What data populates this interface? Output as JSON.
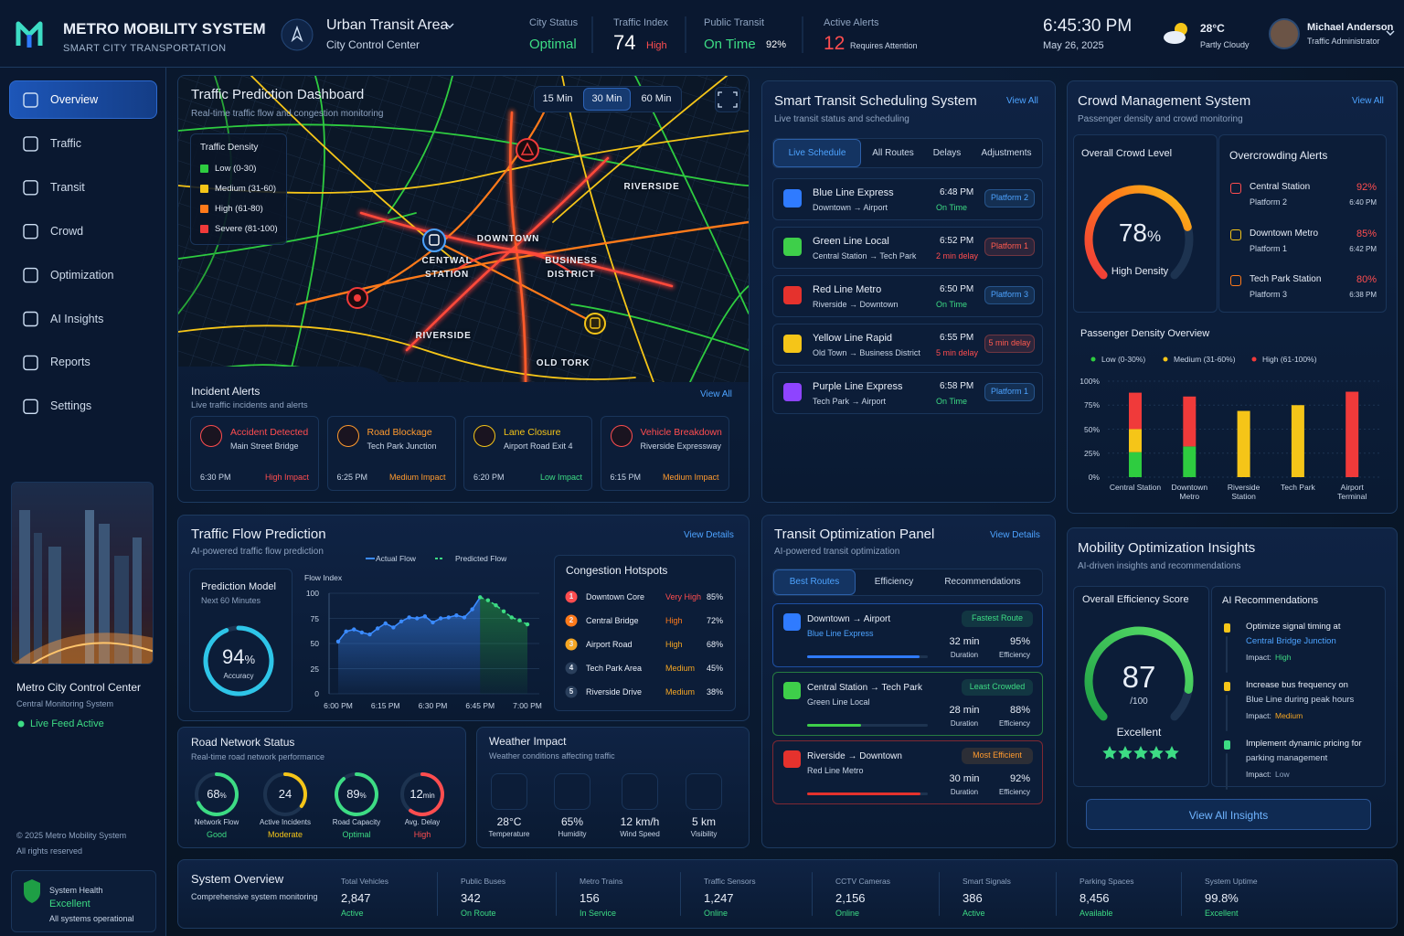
{
  "header": {
    "title": "METRO MOBILITY SYSTEM",
    "subtitle": "SMART CITY TRANSPORTATION",
    "area": "Urban Transit Area",
    "center": "City Control Center",
    "stats": [
      {
        "label": "City Status",
        "value": "Optimal",
        "color": "#3ddc84"
      },
      {
        "label": "Traffic Index",
        "value": 74,
        "color": "#ffffff",
        "note": "High",
        "note_color": "#ff4d4f"
      },
      {
        "label": "Public Transit",
        "value": "On Time",
        "color": "#3ddc84",
        "note": "92%",
        "note_color": "#ffffff"
      },
      {
        "label": "Active Alerts",
        "value": 12,
        "color": "#ff4d4f",
        "note": "Requires Attention",
        "note_color": "#c9d6e8"
      }
    ],
    "time": "6:45:30 PM",
    "date": "May 26, 2025",
    "temperature": "28°C",
    "weather": "Partly Cloudy",
    "user": "Michael Anderson",
    "role": "Traffic Administrator"
  },
  "sidebar": {
    "nav": [
      "Overview",
      "Traffic",
      "Transit",
      "Crowd",
      "Optimization",
      "AI Insights",
      "Reports",
      "Settings"
    ],
    "feed": {
      "title": "Metro City Control Center",
      "subtitle": "Central Monitoring System",
      "status": "Live Feed Active"
    },
    "copyright": "© 2025 Metro Mobility System",
    "rights": "All rights reserved",
    "health": {
      "label": "System Health",
      "status": "Excellent",
      "note": "All systems operational"
    }
  },
  "traffic_map": {
    "title": "Traffic Prediction Dashboard",
    "subtitle": "Real-time traffic flow and congestion monitoring",
    "tabs": [
      "15 Min",
      "30 Min",
      "60 Min"
    ],
    "legend": {
      "title": "Traffic Density",
      "items": [
        {
          "label": "Low (0-30)",
          "color": "#2ecc40"
        },
        {
          "label": "Medium (31-60)",
          "color": "#f5c518"
        },
        {
          "label": "High (61-80)",
          "color": "#ff7a1a"
        },
        {
          "label": "Severe (81-100)",
          "color": "#f03a3a"
        }
      ]
    },
    "places": [
      "RIVERSIDE",
      "DOWNTOWN",
      "CENTWAL STATION",
      "BUSINESS DISTRICT",
      "RIVERSIDE",
      "OLD TORK"
    ],
    "incidents": {
      "title": "Incident Alerts",
      "subtitle": "Live traffic incidents and alerts",
      "view_all": "View All",
      "items": [
        {
          "title": "Accident Detected",
          "location": "Main Street Bridge",
          "time": "6:30 PM",
          "impact": "High Impact",
          "color": "#ff4d4f"
        },
        {
          "title": "Road Blockage",
          "location": "Tech Park Junction",
          "time": "6:25 PM",
          "impact": "Medium Impact",
          "color": "#ff9a2e"
        },
        {
          "title": "Lane Closure",
          "location": "Airport Road Exit 4",
          "time": "6:20 PM",
          "impact": "Low Impact",
          "color": "#f5c518",
          "impact_color": "#3ddc84"
        },
        {
          "title": "Vehicle Breakdown",
          "location": "Riverside Expressway",
          "time": "6:15 PM",
          "impact": "Medium Impact",
          "color": "#ff4d4f",
          "impact_color": "#ff9a2e"
        }
      ]
    }
  },
  "schedule": {
    "title": "Smart Transit Scheduling System",
    "view_all": "View All",
    "subtitle": "Live transit status and scheduling",
    "tabs": [
      "Live Schedule",
      "All Routes",
      "Delays",
      "Adjustments"
    ],
    "rows": [
      {
        "name": "Blue Line Express",
        "route": "Downtown → Airport",
        "time": "6:48 PM",
        "status": "On Time",
        "status_color": "#3ddc84",
        "badge": "Platform 2",
        "badge_color": "#4da3ff",
        "color": "#2f7bff"
      },
      {
        "name": "Green Line Local",
        "route": "Central Station → Tech Park",
        "time": "6:52 PM",
        "status": "2 min delay",
        "status_color": "#ff4d4f",
        "badge": "Platform 1",
        "badge_color": "#ff5a4f",
        "color": "#3ecf4a"
      },
      {
        "name": "Red Line Metro",
        "route": "Riverside → Downtown",
        "time": "6:50 PM",
        "status": "On Time",
        "status_color": "#3ddc84",
        "badge": "Platform 3",
        "badge_color": "#4da3ff",
        "color": "#e5322d"
      },
      {
        "name": "Yellow Line Rapid",
        "route": "Old Town → Business District",
        "time": "6:55 PM",
        "status": "5 min delay",
        "status_color": "#ff4d4f",
        "badge": "5 min delay",
        "badge_color": "#ff5a4f",
        "color": "#f5c518"
      },
      {
        "name": "Purple Line Express",
        "route": "Tech Park → Airport",
        "time": "6:58 PM",
        "status": "On Time",
        "status_color": "#3ddc84",
        "badge": "Platform 1",
        "badge_color": "#4da3ff",
        "color": "#8e44ff"
      }
    ]
  },
  "crowd": {
    "title": "Crowd Management System",
    "view_all": "View All",
    "subtitle": "Passenger density and crowd monitoring",
    "overall": {
      "title": "Overall Crowd Level",
      "value": 78,
      "unit": "%",
      "label": "High Density"
    },
    "alerts": {
      "title": "Overcrowding Alerts",
      "items": [
        {
          "name": "Central Station",
          "platform": "Platform 2",
          "value": "92%",
          "time": "6:40 PM",
          "color": "#ff4d4f"
        },
        {
          "name": "Downtown Metro",
          "platform": "Platform 1",
          "value": "85%",
          "time": "6:42 PM",
          "color": "#f5c518"
        },
        {
          "name": "Tech Park Station",
          "platform": "Platform 3",
          "value": "80%",
          "time": "6:38 PM",
          "color": "#ff7a1a"
        }
      ]
    },
    "density_chart": {
      "type": "bar",
      "stacked": true,
      "title": "Passenger Density Overview",
      "categories": [
        "Central Station",
        "Downtown Metro",
        "Riverside Station",
        "Tech Park",
        "Airport Terminal"
      ],
      "series": [
        {
          "name": "Low (0-30%)",
          "color": "#2ecc40",
          "values": [
            26,
            32,
            0,
            0,
            0
          ]
        },
        {
          "name": "Medium (31-60%)",
          "color": "#f5c518",
          "values": [
            24,
            0,
            69,
            75,
            0
          ]
        },
        {
          "name": "High (61-100%)",
          "color": "#f03a3a",
          "values": [
            38,
            52,
            0,
            0,
            89
          ]
        }
      ],
      "ylim": [
        0,
        100
      ],
      "yticks": [
        {
          "value": 0,
          "label": "0%"
        },
        {
          "value": 25,
          "label": "25%"
        },
        {
          "value": 50,
          "label": "50%"
        },
        {
          "value": 75,
          "label": "75%"
        },
        {
          "value": 100,
          "label": "100%"
        }
      ]
    }
  },
  "flow": {
    "title": "Traffic Flow Prediction",
    "view_details": "View Details",
    "subtitle": "AI-powered traffic flow prediction",
    "model": {
      "title": "Prediction Model",
      "subtitle": "Next 60 Minutes",
      "value": 94,
      "unit": "%",
      "label": "Accuracy"
    },
    "chart": {
      "type": "line",
      "y_label": "Flow Index",
      "categories": [
        "6:00 PM",
        null,
        null,
        null,
        null,
        null,
        "6:15 PM",
        null,
        null,
        null,
        null,
        null,
        "6:30 PM",
        null,
        null,
        null,
        null,
        null,
        "6:45 PM",
        null,
        null,
        null,
        null,
        null,
        "7:00 PM"
      ],
      "series": [
        {
          "name": "Actual Flow",
          "color": "#3b8bff",
          "values": [
            52,
            62,
            64,
            61,
            59,
            65,
            70,
            66,
            72,
            76,
            75,
            77,
            71,
            75,
            76,
            78,
            76,
            84,
            96,
            null,
            null,
            null,
            null,
            null,
            null
          ]
        },
        {
          "name": "Predicted Flow",
          "color": "#3ddc84",
          "dashed": true,
          "values": [
            null,
            null,
            null,
            null,
            null,
            null,
            null,
            null,
            null,
            null,
            null,
            null,
            null,
            null,
            null,
            null,
            null,
            null,
            96,
            93,
            88,
            82,
            76,
            73,
            69
          ]
        }
      ],
      "ylim": [
        0,
        100
      ],
      "yticks": [
        0,
        25,
        50,
        75,
        100
      ]
    },
    "hotspots": {
      "title": "Congestion Hotspots",
      "items": [
        {
          "rank": 1,
          "name": "Downtown Core",
          "level": "Very High",
          "value": "85%",
          "color": "#ff4d4f"
        },
        {
          "rank": 2,
          "name": "Central Bridge",
          "level": "High",
          "value": "72%",
          "color": "#ff7a1a"
        },
        {
          "rank": 3,
          "name": "Airport Road",
          "level": "High",
          "value": "68%",
          "color": "#f5a623"
        },
        {
          "rank": 4,
          "name": "Tech Park Area",
          "level": "Medium",
          "value": "45%",
          "color": "#f5a623"
        },
        {
          "rank": 5,
          "name": "Riverside Drive",
          "level": "Medium",
          "value": "38%",
          "color": "#f5a623"
        }
      ]
    }
  },
  "road_network": {
    "title": "Road Network Status",
    "subtitle": "Real-time road network performance",
    "gauges": [
      {
        "value": 68,
        "unit": "%",
        "label": "Network Flow",
        "status": "Good",
        "color": "#3ddc84"
      },
      {
        "value": 24,
        "label": "Active Incidents",
        "status": "Moderate",
        "color": "#f5c518"
      },
      {
        "value": 89,
        "unit": "%",
        "label": "Road Capacity",
        "status": "Optimal",
        "color": "#3ddc84"
      },
      {
        "value": 12,
        "unit": "min",
        "label": "Avg. Delay",
        "status": "High",
        "color": "#ff4d4f"
      }
    ]
  },
  "weather_impact": {
    "title": "Weather Impact",
    "subtitle": "Weather conditions affecting traffic",
    "items": [
      {
        "value": "28°C",
        "label": "Temperature"
      },
      {
        "value": "65%",
        "label": "Humidity"
      },
      {
        "value": "12 km/h",
        "label": "Wind Speed"
      },
      {
        "value": "5 km",
        "label": "Visibility"
      }
    ]
  },
  "transit_optimization": {
    "title": "Transit Optimization Panel",
    "view_details": "View Details",
    "subtitle": "AI-powered transit optimization",
    "tabs": [
      "Best Routes",
      "Efficiency",
      "Recommendations"
    ],
    "routes": [
      {
        "route": "Downtown → Airport",
        "line": "Blue Line Express",
        "line_color": "#4da3ff",
        "badge": "Fastest Route",
        "badge_color": "#3ddc84",
        "duration": "32 min",
        "duration_label": "Duration",
        "efficiency": "95%",
        "efficiency_label": "Efficiency",
        "color": "#2f7bff"
      },
      {
        "route": "Central Station → Tech Park",
        "line": "Green Line Local",
        "line_color": "#c9d6e8",
        "badge": "Least Crowded",
        "badge_color": "#3ddc84",
        "duration": "28 min",
        "duration_label": "Duration",
        "efficiency": "88%",
        "efficiency_label": "Efficiency",
        "color": "#3ecf4a"
      },
      {
        "route": "Riverside → Downtown",
        "line": "Red Line Metro",
        "line_color": "#c9d6e8",
        "badge": "Most Efficient",
        "badge_color": "#ff9a2e",
        "duration": "30 min",
        "duration_label": "Duration",
        "efficiency": "92%",
        "efficiency_label": "Efficiency",
        "color": "#e5322d"
      }
    ]
  },
  "mobility": {
    "title": "Mobility Optimization Insights",
    "subtitle": "AI-driven insights and recommendations",
    "score": {
      "title": "Overall Efficiency Score",
      "value": 87,
      "max": {
        "value": 100,
        "label": "/100"
      },
      "label": "Excellent"
    },
    "recommendations": {
      "title": "AI Recommendations",
      "items": [
        {
          "text": "Optimize signal timing at",
          "detail": "Central Bridge Junction",
          "detail_color": "#4da3ff",
          "impact_label": "Impact:",
          "impact": "High",
          "impact_color": "#3ddc84",
          "color": "#f5c518"
        },
        {
          "text": "Increase bus frequency on",
          "detail": "Blue Line during peak hours",
          "detail_color": "#c9d6e8",
          "impact_label": "Impact:",
          "impact": "Medium",
          "impact_color": "#f5a623",
          "color": "#f5c518"
        },
        {
          "text": "Implement dynamic pricing for",
          "detail": "parking management",
          "detail_color": "#c9d6e8",
          "impact_label": "Impact:",
          "impact": "Low",
          "impact_color": "#8ea3c0",
          "color": "#3ddc84"
        }
      ]
    },
    "button": "View All Insights"
  },
  "system_overview": {
    "title": "System Overview",
    "subtitle": "Comprehensive system monitoring",
    "stats": [
      {
        "label": "Total Vehicles",
        "value": "2,847",
        "status": "Active"
      },
      {
        "label": "Public Buses",
        "value": "342",
        "status": "On Route"
      },
      {
        "label": "Metro Trains",
        "value": "156",
        "status": "In Service"
      },
      {
        "label": "Traffic Sensors",
        "value": "1,247",
        "status": "Online"
      },
      {
        "label": "CCTV Cameras",
        "value": "2,156",
        "status": "Online"
      },
      {
        "label": "Smart Signals",
        "value": "386",
        "status": "Active"
      },
      {
        "label": "Parking Spaces",
        "value": "8,456",
        "status": "Available"
      },
      {
        "label": "System Uptime",
        "value": "99.8%",
        "status": "Excellent"
      }
    ]
  }
}
